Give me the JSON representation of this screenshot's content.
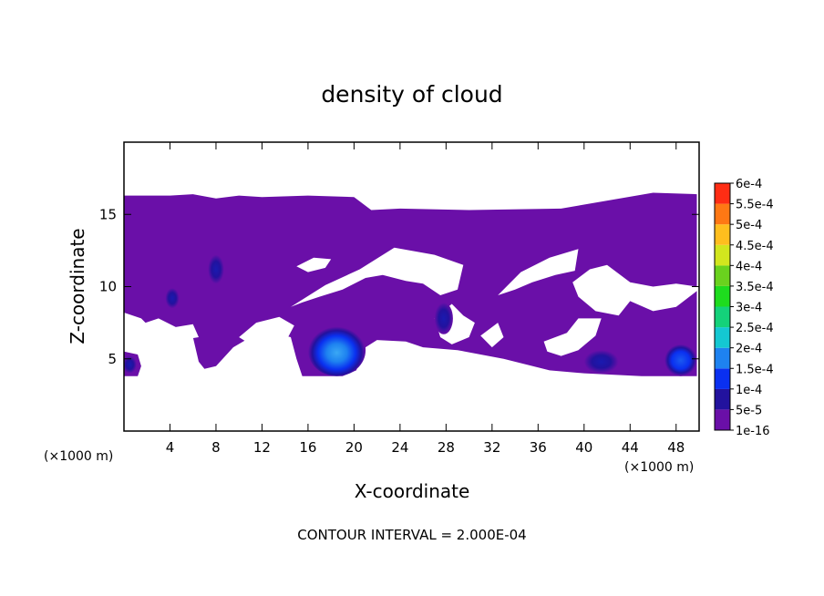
{
  "chart_data": {
    "type": "heatmap",
    "title": "density of cloud",
    "xlabel": "X-coordinate",
    "ylabel": "Z-coordinate",
    "x_unit": "(×1000 m)",
    "xlim": [
      0,
      50
    ],
    "ylim": [
      0,
      20
    ],
    "x_ticks": [
      4,
      8,
      12,
      16,
      20,
      24,
      28,
      32,
      36,
      40,
      44,
      48
    ],
    "y_ticks": [
      5,
      10,
      15
    ],
    "contour_interval_label": "CONTOUR INTERVAL = 2.000E-04",
    "colorbar": {
      "labels": [
        "1e-16",
        "5e-5",
        "1e-4",
        "1.5e-4",
        "2e-4",
        "2.5e-4",
        "3e-4",
        "3.5e-4",
        "4e-4",
        "4.5e-4",
        "5e-4",
        "5.5e-4",
        "6e-4"
      ],
      "colors": [
        "#6a0fa8",
        "#22129e",
        "#0a30f0",
        "#1e82f0",
        "#14c8d2",
        "#14d27a",
        "#1edc1e",
        "#6ad21e",
        "#d2e61e",
        "#ffbe1e",
        "#ff7814",
        "#ff2d14",
        "#ff8080"
      ]
    },
    "cloud_regions": [
      {
        "level": "1e-16",
        "polygon": [
          [
            0,
            16.3
          ],
          [
            4,
            16.3
          ],
          [
            6,
            16.4
          ],
          [
            8,
            16.1
          ],
          [
            10,
            16.3
          ],
          [
            12,
            16.2
          ],
          [
            16,
            16.3
          ],
          [
            20,
            16.2
          ],
          [
            21.5,
            15.3
          ],
          [
            24,
            15.4
          ],
          [
            30,
            15.3
          ],
          [
            38,
            15.4
          ],
          [
            46,
            16.5
          ],
          [
            49.8,
            16.4
          ],
          [
            49.8,
            3.8
          ],
          [
            45,
            3.8
          ],
          [
            40,
            4.0
          ],
          [
            37,
            4.2
          ],
          [
            33,
            5.0
          ],
          [
            29,
            5.6
          ],
          [
            26,
            5.8
          ],
          [
            24.5,
            6.2
          ],
          [
            22,
            6.3
          ],
          [
            21,
            5.8
          ],
          [
            20.2,
            4.2
          ],
          [
            19,
            3.8
          ],
          [
            15.5,
            3.8
          ],
          [
            15,
            5.0
          ],
          [
            14.5,
            6.5
          ],
          [
            13,
            6.8
          ],
          [
            11,
            6.5
          ],
          [
            9.5,
            5.8
          ],
          [
            8,
            4.5
          ],
          [
            7,
            4.3
          ],
          [
            6.5,
            4.8
          ],
          [
            6,
            6.5
          ],
          [
            4,
            6.8
          ],
          [
            2,
            7.4
          ],
          [
            1.5,
            7.8
          ],
          [
            0,
            8.2
          ]
        ]
      },
      {
        "level": "1e-16",
        "polygon": [
          [
            0,
            5.5
          ],
          [
            1.2,
            5.3
          ],
          [
            1.5,
            4.5
          ],
          [
            1.2,
            3.8
          ],
          [
            0,
            3.8
          ]
        ]
      }
    ],
    "gaps": [
      {
        "polygon": [
          [
            14.5,
            8.6
          ],
          [
            17.5,
            10.1
          ],
          [
            20.5,
            11.2
          ],
          [
            23.5,
            12.7
          ],
          [
            27,
            12.2
          ],
          [
            29.5,
            11.5
          ],
          [
            29,
            9.8
          ],
          [
            27.5,
            9.4
          ],
          [
            26,
            10.2
          ],
          [
            24.5,
            10.4
          ],
          [
            22.5,
            10.8
          ],
          [
            21,
            10.6
          ],
          [
            19,
            9.8
          ],
          [
            17,
            9.3
          ],
          [
            15.5,
            8.9
          ]
        ]
      },
      {
        "polygon": [
          [
            32.5,
            9.4
          ],
          [
            34.5,
            11.0
          ],
          [
            37,
            12.0
          ],
          [
            39.5,
            12.6
          ],
          [
            39.2,
            11.1
          ],
          [
            37.5,
            10.8
          ],
          [
            35.5,
            10.3
          ],
          [
            34,
            9.8
          ]
        ]
      },
      {
        "polygon": [
          [
            15,
            11.4
          ],
          [
            16.5,
            12.0
          ],
          [
            18,
            11.9
          ],
          [
            17.5,
            11.3
          ],
          [
            16,
            11.0
          ]
        ]
      },
      {
        "polygon": [
          [
            39,
            10.3
          ],
          [
            40.5,
            11.2
          ],
          [
            42,
            11.5
          ],
          [
            44,
            10.3
          ],
          [
            46,
            10.0
          ],
          [
            48,
            10.2
          ],
          [
            49.8,
            10.0
          ],
          [
            49.8,
            9.7
          ],
          [
            48,
            8.6
          ],
          [
            46,
            8.3
          ],
          [
            44,
            9.0
          ],
          [
            43,
            8.0
          ],
          [
            41,
            8.3
          ],
          [
            39.5,
            9.3
          ]
        ]
      },
      {
        "polygon": [
          [
            27,
            7.8
          ],
          [
            28.5,
            8.8
          ],
          [
            29.5,
            8.0
          ],
          [
            30.5,
            7.5
          ],
          [
            30,
            6.5
          ],
          [
            28.5,
            6.0
          ],
          [
            27.5,
            6.5
          ]
        ]
      },
      {
        "polygon": [
          [
            31,
            6.6
          ],
          [
            32.5,
            7.5
          ],
          [
            33,
            6.5
          ],
          [
            32,
            5.8
          ]
        ]
      },
      {
        "polygon": [
          [
            36.5,
            6.2
          ],
          [
            38.5,
            6.8
          ],
          [
            39.5,
            7.8
          ],
          [
            41.5,
            7.8
          ],
          [
            41,
            6.6
          ],
          [
            39.5,
            5.6
          ],
          [
            38,
            5.2
          ],
          [
            36.8,
            5.5
          ]
        ]
      },
      {
        "polygon": [
          [
            1.5,
            7.4
          ],
          [
            3,
            7.8
          ],
          [
            4.5,
            7.2
          ],
          [
            6,
            7.4
          ],
          [
            6.5,
            6.5
          ],
          [
            5,
            6.3
          ],
          [
            3,
            6.6
          ]
        ]
      },
      {
        "polygon": [
          [
            10,
            6.5
          ],
          [
            11.5,
            7.5
          ],
          [
            13.5,
            7.9
          ],
          [
            14.8,
            7.3
          ],
          [
            14.2,
            6.4
          ],
          [
            12.5,
            6.0
          ],
          [
            11,
            6.0
          ]
        ]
      }
    ],
    "density_cores": [
      {
        "cx": 18.5,
        "cz": 5.6,
        "rx": 2.5,
        "rz": 1.8,
        "peak": "1.5e-4"
      },
      {
        "cx": 48.4,
        "cz": 4.9,
        "rx": 1.4,
        "rz": 1.1,
        "peak": "1e-4"
      },
      {
        "cx": 41.5,
        "cz": 4.8,
        "rx": 1.5,
        "rz": 0.8,
        "peak": "5e-5"
      },
      {
        "cx": 27.8,
        "cz": 7.8,
        "rx": 0.8,
        "rz": 1.1,
        "peak": "5e-5"
      },
      {
        "cx": 8.0,
        "cz": 11.2,
        "rx": 0.7,
        "rz": 1.0,
        "peak": "5e-5"
      },
      {
        "cx": 4.2,
        "cz": 9.2,
        "rx": 0.6,
        "rz": 0.7,
        "peak": "5e-5"
      },
      {
        "cx": 0.5,
        "cz": 4.6,
        "rx": 0.6,
        "rz": 0.6,
        "peak": "5e-5"
      }
    ]
  }
}
